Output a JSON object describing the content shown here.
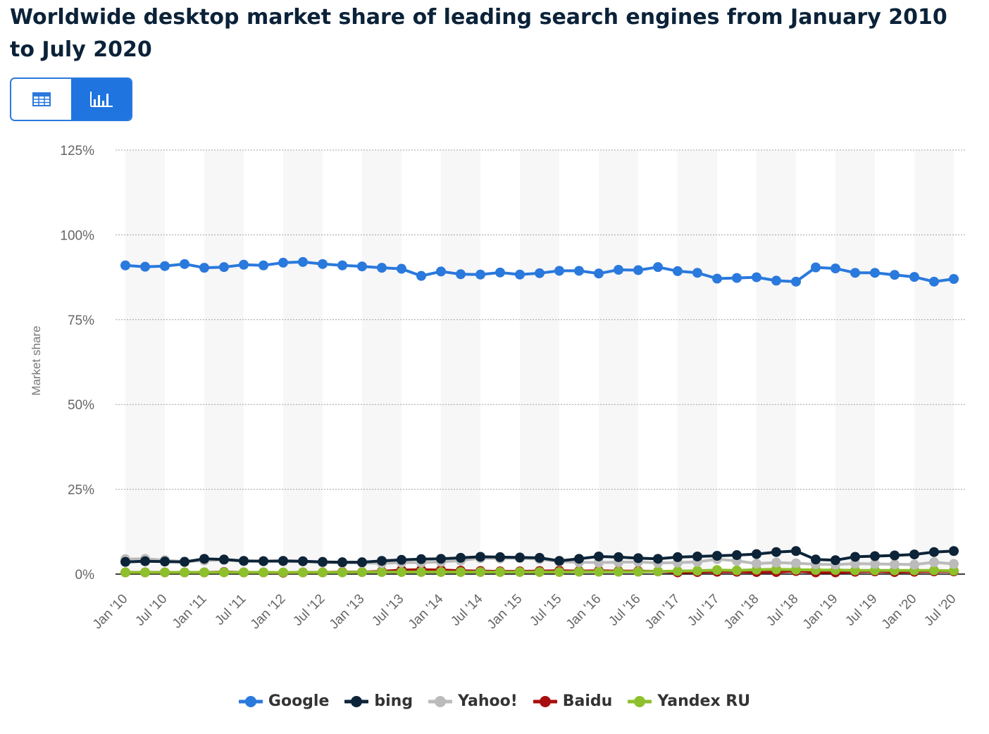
{
  "title": "Worldwide desktop market share of leading search engines from January 2010 to July 2020",
  "toggle": {
    "table_icon": "table-icon",
    "chart_icon": "bar-chart-icon",
    "active": "chart"
  },
  "colors": {
    "Google": "#2a79dd",
    "bing": "#0d2438",
    "Yahoo!": "#bbbbbb",
    "Baidu": "#a80e0e",
    "Yandex RU": "#8dc02c",
    "accent": "#1f74e0"
  },
  "chart_data": {
    "type": "line",
    "ylabel": "Market share",
    "ylim": [
      0,
      125
    ],
    "yticks": [
      "0%",
      "25%",
      "50%",
      "75%",
      "100%",
      "125%"
    ],
    "grid": true,
    "legend_position": "bottom",
    "x_ticks": [
      "Jan '10",
      "Jul '10",
      "Jan '11",
      "Jul '11",
      "Jan '12",
      "Jul '12",
      "Jan '13",
      "Jul '13",
      "Jan '14",
      "Jul '14",
      "Jan '15",
      "Jul '15",
      "Jan '16",
      "Jul '16",
      "Jan '17",
      "Jul '17",
      "Jan '18",
      "Jul '18",
      "Jan '19",
      "Jul '19",
      "Jan '20",
      "Jul '20"
    ],
    "x": [
      "Jan '10",
      "Apr '10",
      "Jul '10",
      "Oct '10",
      "Jan '11",
      "Apr '11",
      "Jul '11",
      "Oct '11",
      "Jan '12",
      "Apr '12",
      "Jul '12",
      "Oct '12",
      "Jan '13",
      "Apr '13",
      "Jul '13",
      "Oct '13",
      "Jan '14",
      "Apr '14",
      "Jul '14",
      "Oct '14",
      "Jan '15",
      "Apr '15",
      "Jul '15",
      "Oct '15",
      "Jan '16",
      "Apr '16",
      "Jul '16",
      "Oct '16",
      "Jan '17",
      "Apr '17",
      "Jul '17",
      "Oct '17",
      "Jan '18",
      "Apr '18",
      "Jul '18",
      "Oct '18",
      "Jan '19",
      "Apr '19",
      "Jul '19",
      "Oct '19",
      "Jan '20",
      "Apr '20",
      "Jul '20"
    ],
    "series": [
      {
        "name": "Google",
        "values": [
          91.0,
          90.6,
          90.8,
          91.4,
          90.3,
          90.5,
          91.2,
          91.0,
          91.8,
          92.0,
          91.4,
          91.0,
          90.7,
          90.3,
          90.0,
          87.9,
          89.2,
          88.4,
          88.3,
          88.9,
          88.3,
          88.7,
          89.4,
          89.4,
          88.6,
          89.7,
          89.6,
          90.5,
          89.3,
          88.8,
          87.1,
          87.3,
          87.5,
          86.5,
          86.2,
          90.4,
          90.1,
          88.8,
          88.8,
          88.2,
          87.6,
          86.2,
          87.0
        ]
      },
      {
        "name": "bing",
        "values": [
          3.6,
          3.8,
          3.7,
          3.6,
          4.5,
          4.3,
          3.9,
          3.8,
          3.9,
          3.8,
          3.6,
          3.5,
          3.5,
          3.9,
          4.2,
          4.4,
          4.5,
          4.8,
          5.1,
          5.0,
          4.9,
          4.8,
          3.9,
          4.5,
          5.2,
          5.0,
          4.7,
          4.5,
          5.0,
          5.2,
          5.4,
          5.6,
          5.9,
          6.5,
          6.8,
          4.3,
          4.1,
          5.1,
          5.3,
          5.5,
          5.8,
          6.5,
          6.8
        ]
      },
      {
        "name": "Yahoo!",
        "values": [
          4.4,
          4.5,
          4.1,
          3.7,
          4.0,
          4.2,
          3.8,
          3.9,
          3.7,
          3.7,
          3.4,
          3.3,
          3.3,
          3.2,
          3.4,
          3.4,
          3.6,
          4.0,
          4.7,
          4.6,
          4.7,
          4.4,
          3.7,
          3.5,
          3.4,
          3.5,
          3.6,
          3.3,
          3.4,
          3.6,
          4.4,
          3.9,
          3.1,
          3.4,
          3.2,
          2.9,
          2.8,
          3.1,
          3.0,
          2.9,
          2.8,
          3.5,
          3.0
        ]
      },
      {
        "name": "Baidu",
        "values": [
          0.5,
          0.5,
          0.5,
          0.5,
          0.5,
          0.6,
          0.5,
          0.5,
          0.4,
          0.5,
          0.5,
          0.6,
          0.6,
          0.8,
          1.2,
          1.3,
          1.2,
          1.0,
          0.9,
          0.8,
          0.8,
          0.9,
          1.0,
          0.9,
          1.0,
          0.9,
          0.9,
          0.8,
          0.5,
          0.6,
          0.7,
          0.7,
          0.6,
          0.6,
          0.9,
          0.5,
          0.5,
          0.7,
          0.8,
          0.6,
          0.7,
          0.8,
          0.8
        ]
      },
      {
        "name": "Yandex RU",
        "values": [
          0.5,
          0.5,
          0.5,
          0.5,
          0.5,
          0.5,
          0.5,
          0.5,
          0.5,
          0.5,
          0.5,
          0.5,
          0.6,
          0.6,
          0.6,
          0.6,
          0.6,
          0.6,
          0.6,
          0.6,
          0.6,
          0.6,
          0.6,
          0.7,
          0.7,
          0.7,
          0.7,
          0.8,
          0.9,
          1.0,
          1.2,
          1.1,
          1.3,
          1.4,
          1.3,
          1.2,
          1.2,
          1.1,
          1.1,
          1.1,
          1.1,
          1.1,
          1.0
        ]
      }
    ]
  }
}
